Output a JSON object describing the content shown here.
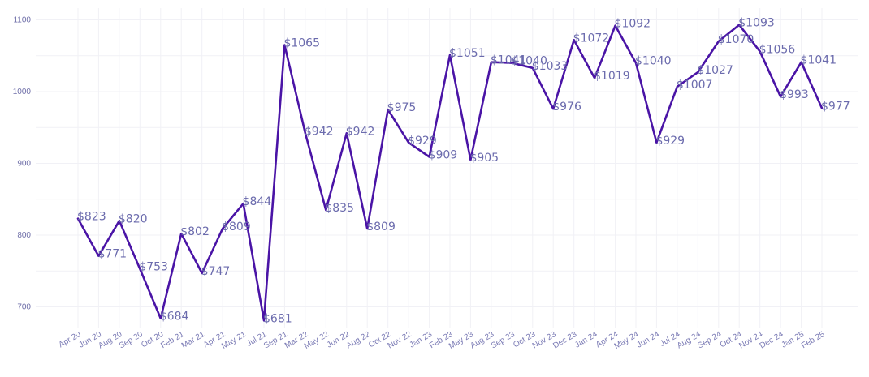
{
  "chart_data": {
    "type": "line",
    "title": "",
    "xlabel": "",
    "ylabel": "",
    "ylim": [
      655,
      1115
    ],
    "y_ticks": [
      700,
      800,
      900,
      1000,
      1100
    ],
    "grid": true,
    "legend": "none",
    "value_prefix": "$",
    "categories": [
      "Apr 20",
      "Jun 20",
      "Aug 20",
      "Sep 20",
      "Oct 20",
      "Feb 21",
      "Mar 21",
      "Apr 21",
      "May 21",
      "Jul 21",
      "Sep 21",
      "Mar 22",
      "May 22",
      "Jun 22",
      "Aug 22",
      "Oct 22",
      "Nov 22",
      "Jan 23",
      "Feb 23",
      "May 23",
      "Aug 23",
      "Sep 23",
      "Oct 23",
      "Nov 23",
      "Dec 23",
      "Jan 24",
      "Apr 24",
      "May 24",
      "Jun 24",
      "Jul 24",
      "Aug 24",
      "Sep 24",
      "Oct 24",
      "Nov 24",
      "Dec 24",
      "Jan 25",
      "Feb 25"
    ],
    "series": [
      {
        "color": "#4a14a6",
        "values": [
          823,
          771,
          820,
          753,
          684,
          802,
          747,
          809,
          844,
          681,
          1065,
          942,
          835,
          942,
          809,
          975,
          929,
          909,
          1051,
          905,
          1041,
          1040,
          1033,
          976,
          1072,
          1019,
          1092,
          1040,
          929,
          1007,
          1027,
          1070,
          1093,
          1056,
          993,
          1041,
          977
        ]
      }
    ],
    "data_labels": [
      "$823",
      "$771",
      "$820",
      "$753",
      "$684",
      "$802",
      "$747",
      "$809",
      "$844",
      "$681",
      "$1065",
      "$942",
      "$835",
      "$942",
      "$809",
      "$975",
      "$929",
      "$909",
      "$1051",
      "$905",
      "$1041",
      "$1040",
      "$1033",
      "$976",
      "$1072",
      "$1019",
      "$1092",
      "$1040",
      "$929",
      "$1007",
      "$1027",
      "$1070",
      "$1093",
      "$1056",
      "$993",
      "$1041",
      "$977"
    ]
  }
}
